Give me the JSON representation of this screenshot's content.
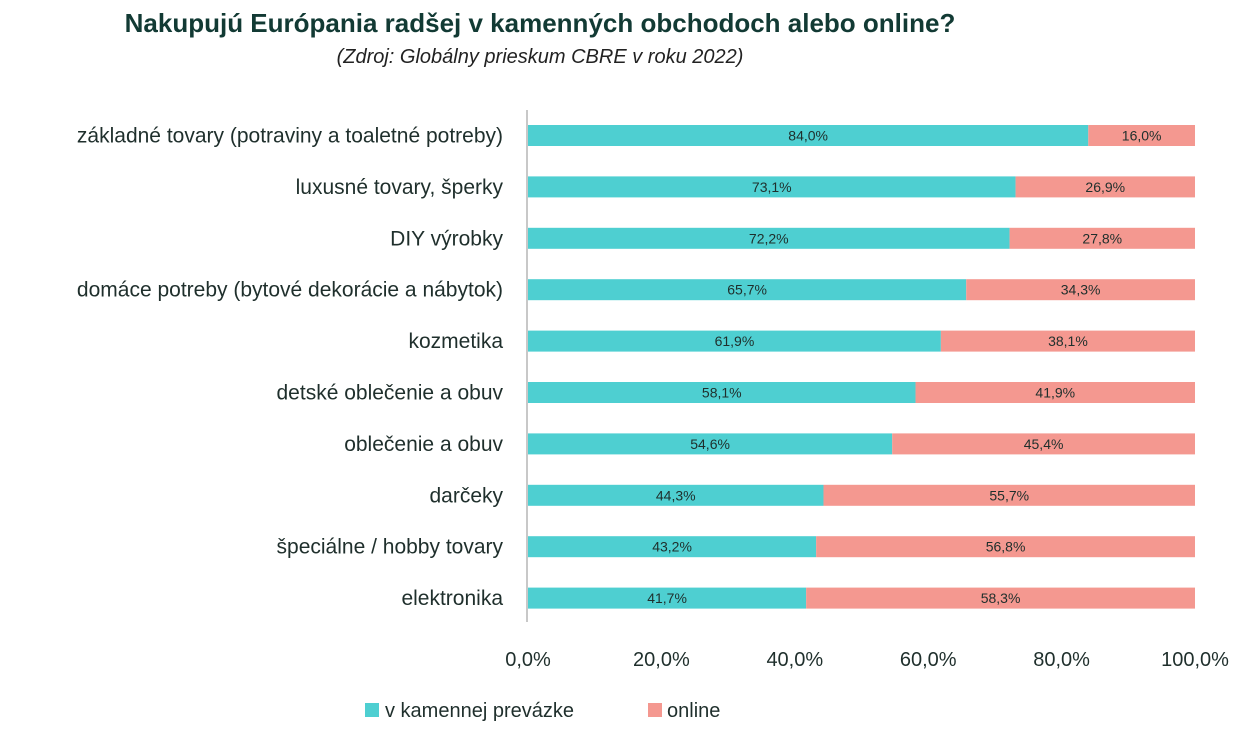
{
  "chart_data": {
    "type": "bar",
    "orientation": "horizontal",
    "stacked": true,
    "title": "Nakupujú Európania radšej v kamenných obchodoch alebo online?",
    "subtitle": "(Zdroj: Globálny prieskum CBRE v roku 2022)",
    "categories": [
      "základné tovary (potraviny a toaletné potreby)",
      "luxusné tovary, šperky",
      "DIY výrobky",
      "domáce potreby (bytové dekorácie a nábytok)",
      "kozmetika",
      "detské oblečenie a obuv",
      "oblečenie a obuv",
      "darčeky",
      "špeciálne / hobby tovary",
      "elektronika"
    ],
    "series": [
      {
        "name": "v kamennej prevázke",
        "color": "#4ecfd1",
        "values": [
          84.0,
          73.1,
          72.2,
          65.7,
          61.9,
          58.1,
          54.6,
          44.3,
          43.2,
          41.7
        ],
        "labels": [
          "84,0%",
          "73,1%",
          "72,2%",
          "65,7%",
          "61,9%",
          "58,1%",
          "54,6%",
          "44,3%",
          "43,2%",
          "41,7%"
        ]
      },
      {
        "name": "online",
        "color": "#f49890",
        "values": [
          16.0,
          26.9,
          27.8,
          34.3,
          38.1,
          41.9,
          45.4,
          55.7,
          56.8,
          58.3
        ],
        "labels": [
          "16,0%",
          "26,9%",
          "27,8%",
          "34,3%",
          "38,1%",
          "41,9%",
          "45,4%",
          "55,7%",
          "56,8%",
          "58,3%"
        ]
      }
    ],
    "xlim": [
      0,
      100
    ],
    "xticks": [
      0,
      20,
      40,
      60,
      80,
      100
    ],
    "xtick_labels": [
      "0,0%",
      "20,0%",
      "40,0%",
      "60,0%",
      "80,0%",
      "100,0%"
    ],
    "grid": false,
    "legend": "bottom"
  }
}
